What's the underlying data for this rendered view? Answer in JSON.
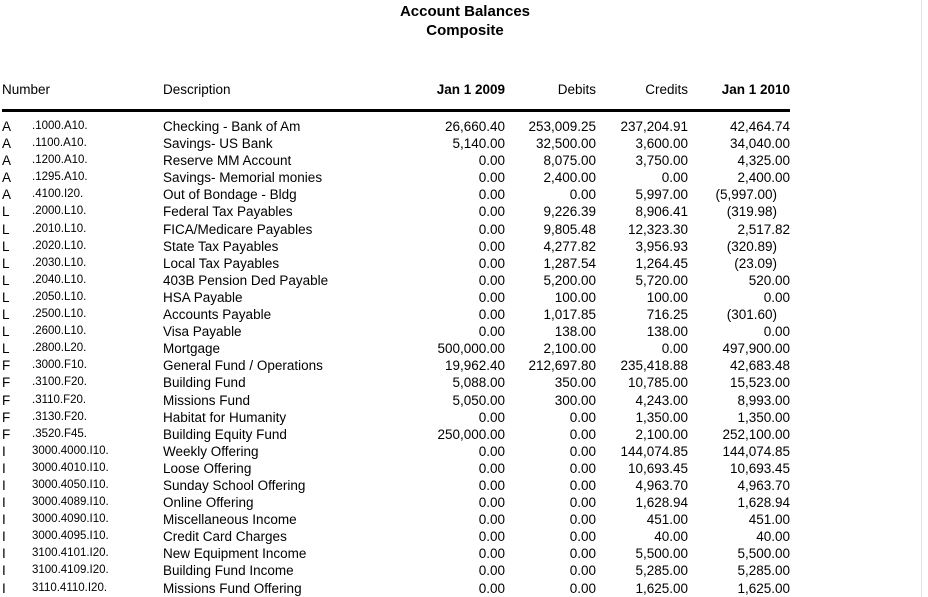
{
  "report": {
    "title_line1": "Account Balances",
    "title_line2": "Composite"
  },
  "columns": {
    "number": "Number",
    "description": "Description",
    "jan2009": "Jan 1 2009",
    "debits": "Debits",
    "credits": "Credits",
    "jan2010": "Jan 1 2010"
  },
  "rows": [
    {
      "type": "A",
      "number": ".1000.A10.",
      "description": "Checking - Bank of Am",
      "jan2009": "26,660.40",
      "debits": "253,009.25",
      "credits": "237,204.91",
      "jan2010": "42,464.74"
    },
    {
      "type": "A",
      "number": ".1100.A10.",
      "description": "Savings- US Bank",
      "jan2009": "5,140.00",
      "debits": "32,500.00",
      "credits": "3,600.00",
      "jan2010": "34,040.00"
    },
    {
      "type": "A",
      "number": ".1200.A10.",
      "description": "Reserve MM Account",
      "jan2009": "0.00",
      "debits": "8,075.00",
      "credits": "3,750.00",
      "jan2010": "4,325.00"
    },
    {
      "type": "A",
      "number": ".1295.A10.",
      "description": "Savings- Memorial monies",
      "jan2009": "0.00",
      "debits": "2,400.00",
      "credits": "0.00",
      "jan2010": "2,400.00"
    },
    {
      "type": "A",
      "number": ".4100.I20.",
      "description": "Out of Bondage - Bldg",
      "jan2009": "0.00",
      "debits": "0.00",
      "credits": "5,997.00",
      "jan2010": "(5,997.00)"
    },
    {
      "type": "L",
      "number": ".2000.L10.",
      "description": "Federal Tax Payables",
      "jan2009": "0.00",
      "debits": "9,226.39",
      "credits": "8,906.41",
      "jan2010": "(319.98)"
    },
    {
      "type": "L",
      "number": ".2010.L10.",
      "description": "FICA/Medicare Payables",
      "jan2009": "0.00",
      "debits": "9,805.48",
      "credits": "12,323.30",
      "jan2010": "2,517.82"
    },
    {
      "type": "L",
      "number": ".2020.L10.",
      "description": "State Tax Payables",
      "jan2009": "0.00",
      "debits": "4,277.82",
      "credits": "3,956.93",
      "jan2010": "(320.89)"
    },
    {
      "type": "L",
      "number": ".2030.L10.",
      "description": "Local Tax Payables",
      "jan2009": "0.00",
      "debits": "1,287.54",
      "credits": "1,264.45",
      "jan2010": "(23.09)"
    },
    {
      "type": "L",
      "number": ".2040.L10.",
      "description": "403B Pension Ded Payable",
      "jan2009": "0.00",
      "debits": "5,200.00",
      "credits": "5,720.00",
      "jan2010": "520.00"
    },
    {
      "type": "L",
      "number": ".2050.L10.",
      "description": "HSA  Payable",
      "jan2009": "0.00",
      "debits": "100.00",
      "credits": "100.00",
      "jan2010": "0.00"
    },
    {
      "type": "L",
      "number": ".2500.L10.",
      "description": "Accounts Payable",
      "jan2009": "0.00",
      "debits": "1,017.85",
      "credits": "716.25",
      "jan2010": "(301.60)"
    },
    {
      "type": "L",
      "number": ".2600.L10.",
      "description": "Visa Payable",
      "jan2009": "0.00",
      "debits": "138.00",
      "credits": "138.00",
      "jan2010": "0.00"
    },
    {
      "type": "L",
      "number": ".2800.L20.",
      "description": "Mortgage",
      "jan2009": "500,000.00",
      "debits": "2,100.00",
      "credits": "0.00",
      "jan2010": "497,900.00"
    },
    {
      "type": "F",
      "number": ".3000.F10.",
      "description": "General Fund / Operations",
      "jan2009": "19,962.40",
      "debits": "212,697.80",
      "credits": "235,418.88",
      "jan2010": "42,683.48"
    },
    {
      "type": "F",
      "number": ".3100.F20.",
      "description": "Building Fund",
      "jan2009": "5,088.00",
      "debits": "350.00",
      "credits": "10,785.00",
      "jan2010": "15,523.00"
    },
    {
      "type": "F",
      "number": ".3110.F20.",
      "description": "Missions Fund",
      "jan2009": "5,050.00",
      "debits": "300.00",
      "credits": "4,243.00",
      "jan2010": "8,993.00"
    },
    {
      "type": "F",
      "number": ".3130.F20.",
      "description": "Habitat for Humanity",
      "jan2009": "0.00",
      "debits": "0.00",
      "credits": "1,350.00",
      "jan2010": "1,350.00"
    },
    {
      "type": "F",
      "number": ".3520.F45.",
      "description": "Building Equity Fund",
      "jan2009": "250,000.00",
      "debits": "0.00",
      "credits": "2,100.00",
      "jan2010": "252,100.00"
    },
    {
      "type": "I",
      "number": "3000.4000.I10.",
      "description": "Weekly Offering",
      "jan2009": "0.00",
      "debits": "0.00",
      "credits": "144,074.85",
      "jan2010": "144,074.85"
    },
    {
      "type": "I",
      "number": "3000.4010.I10.",
      "description": "Loose Offering",
      "jan2009": "0.00",
      "debits": "0.00",
      "credits": "10,693.45",
      "jan2010": "10,693.45"
    },
    {
      "type": "I",
      "number": "3000.4050.I10.",
      "description": "Sunday School Offering",
      "jan2009": "0.00",
      "debits": "0.00",
      "credits": "4,963.70",
      "jan2010": "4,963.70"
    },
    {
      "type": "I",
      "number": "3000.4089.I10.",
      "description": "Online Offering",
      "jan2009": "0.00",
      "debits": "0.00",
      "credits": "1,628.94",
      "jan2010": "1,628.94"
    },
    {
      "type": "I",
      "number": "3000.4090.I10.",
      "description": "Miscellaneous Income",
      "jan2009": "0.00",
      "debits": "0.00",
      "credits": "451.00",
      "jan2010": "451.00"
    },
    {
      "type": "I",
      "number": "3000.4095.I10.",
      "description": "Credit Card Charges",
      "jan2009": "0.00",
      "debits": "0.00",
      "credits": "40.00",
      "jan2010": "40.00"
    },
    {
      "type": "I",
      "number": "3100.4101.I20.",
      "description": "New Equipment Income",
      "jan2009": "0.00",
      "debits": "0.00",
      "credits": "5,500.00",
      "jan2010": "5,500.00"
    },
    {
      "type": "I",
      "number": "3100.4109.I20.",
      "description": "Building Fund Income",
      "jan2009": "0.00",
      "debits": "0.00",
      "credits": "5,285.00",
      "jan2010": "5,285.00"
    },
    {
      "type": "I",
      "number": "3110.4110.I20.",
      "description": "Missions Fund Offering",
      "jan2009": "0.00",
      "debits": "0.00",
      "credits": "1,625.00",
      "jan2010": "1,625.00"
    }
  ]
}
